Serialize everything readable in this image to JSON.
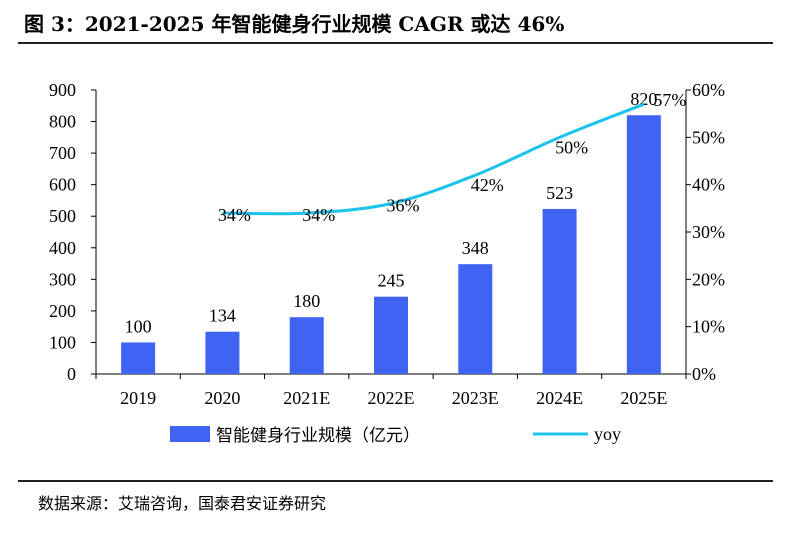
{
  "figure_title": "图 3：2021-2025 年智能健身行业规模 CAGR 或达 46%",
  "source_note": "数据来源：艾瑞咨询，国泰君安证券研究",
  "colors": {
    "bar": "#3F64F2",
    "line": "#1BC3EC",
    "axis": "#000000"
  },
  "chart_data": {
    "type": "bar",
    "categories": [
      "2019",
      "2020",
      "2021E",
      "2022E",
      "2023E",
      "2024E",
      "2025E"
    ],
    "series": [
      {
        "name": "智能健身行业规模（亿元）",
        "type": "bar",
        "axis": "left",
        "values": [
          100,
          134,
          180,
          245,
          348,
          523,
          820
        ],
        "labels": [
          "100",
          "134",
          "180",
          "245",
          "348",
          "523",
          "820"
        ]
      },
      {
        "name": "yoy",
        "type": "line",
        "axis": "right",
        "values": [
          null,
          34,
          34,
          36,
          42,
          50,
          57
        ],
        "labels": [
          "",
          "34%",
          "34%",
          "36%",
          "42%",
          "50%",
          "57%"
        ]
      }
    ],
    "y_left": {
      "range": [
        0,
        900
      ],
      "ticks": [
        "0",
        "100",
        "200",
        "300",
        "400",
        "500",
        "600",
        "700",
        "800",
        "900"
      ]
    },
    "y_right": {
      "range": [
        0,
        60
      ],
      "ticks": [
        "0%",
        "10%",
        "20%",
        "30%",
        "40%",
        "50%",
        "60%"
      ]
    },
    "legend": {
      "position": "bottom",
      "items": [
        "智能健身行业规模（亿元）",
        "yoy"
      ]
    },
    "grid": false
  }
}
